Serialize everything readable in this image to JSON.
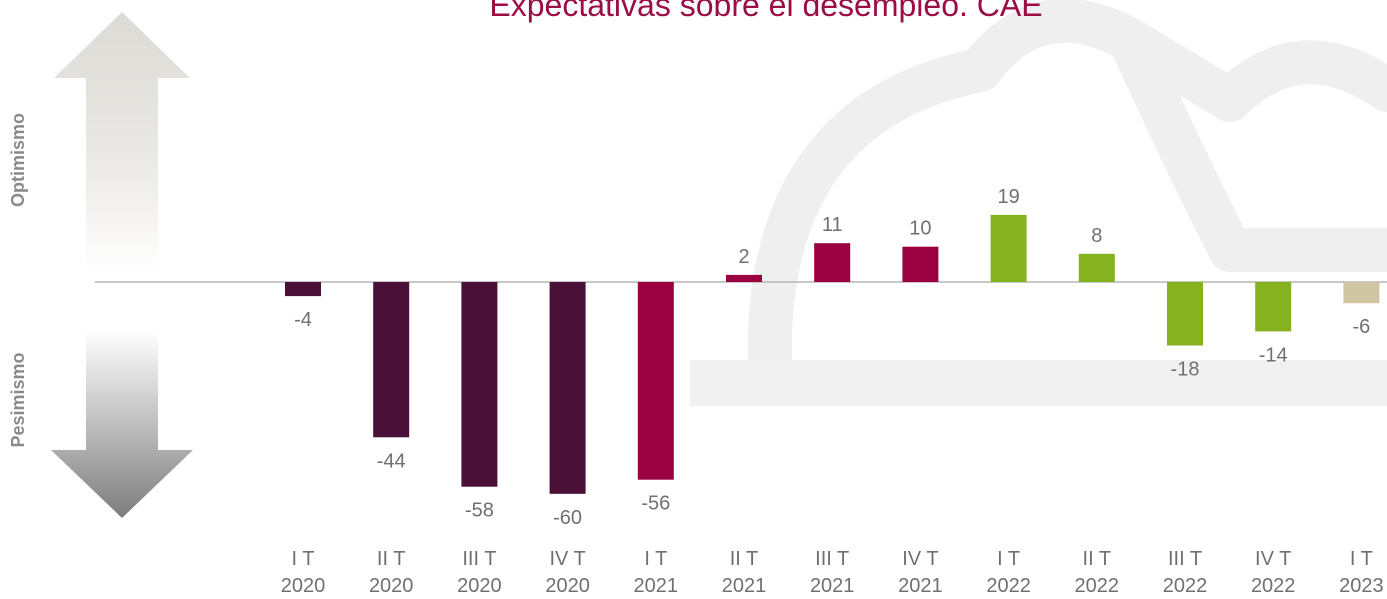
{
  "chart_data": {
    "type": "bar",
    "title": "Expectativas sobre el desempleo. CAE",
    "side_labels": {
      "top": "Optimismo",
      "bottom": "Pesimismo"
    },
    "categories": [
      {
        "line1": "I T",
        "line2": "2020"
      },
      {
        "line1": "II T",
        "line2": "2020"
      },
      {
        "line1": "III T",
        "line2": "2020"
      },
      {
        "line1": "IV T",
        "line2": "2020"
      },
      {
        "line1": "I T",
        "line2": "2021"
      },
      {
        "line1": "II T",
        "line2": "2021"
      },
      {
        "line1": "III T",
        "line2": "2021"
      },
      {
        "line1": "IV T",
        "line2": "2021"
      },
      {
        "line1": "I T",
        "line2": "2022"
      },
      {
        "line1": "II T",
        "line2": "2022"
      },
      {
        "line1": "III T",
        "line2": "2022"
      },
      {
        "line1": "IV T",
        "line2": "2022"
      },
      {
        "line1": "I T",
        "line2": "2023"
      }
    ],
    "values": [
      -4,
      -44,
      -58,
      -60,
      -56,
      2,
      11,
      10,
      19,
      8,
      -18,
      -14,
      -6
    ],
    "bar_colors": [
      "#4b1038",
      "#4b1038",
      "#4b1038",
      "#4b1038",
      "#9b0040",
      "#9b0040",
      "#9b0040",
      "#9b0040",
      "#86b21f",
      "#86b21f",
      "#86b21f",
      "#86b21f",
      "#cfc5a3"
    ],
    "ylim": [
      -60,
      19
    ],
    "grid": false,
    "legend": "none"
  },
  "colors": {
    "title": "#9b0d45",
    "axis_line": "#b5b5b5",
    "labels": "#707070",
    "side_labels": "#8a8a8a"
  },
  "decorations": {
    "top_arrow": "up-arrow-icon",
    "bottom_arrow": "down-arrow-icon",
    "watermark": "cloud-watermark-icon"
  }
}
